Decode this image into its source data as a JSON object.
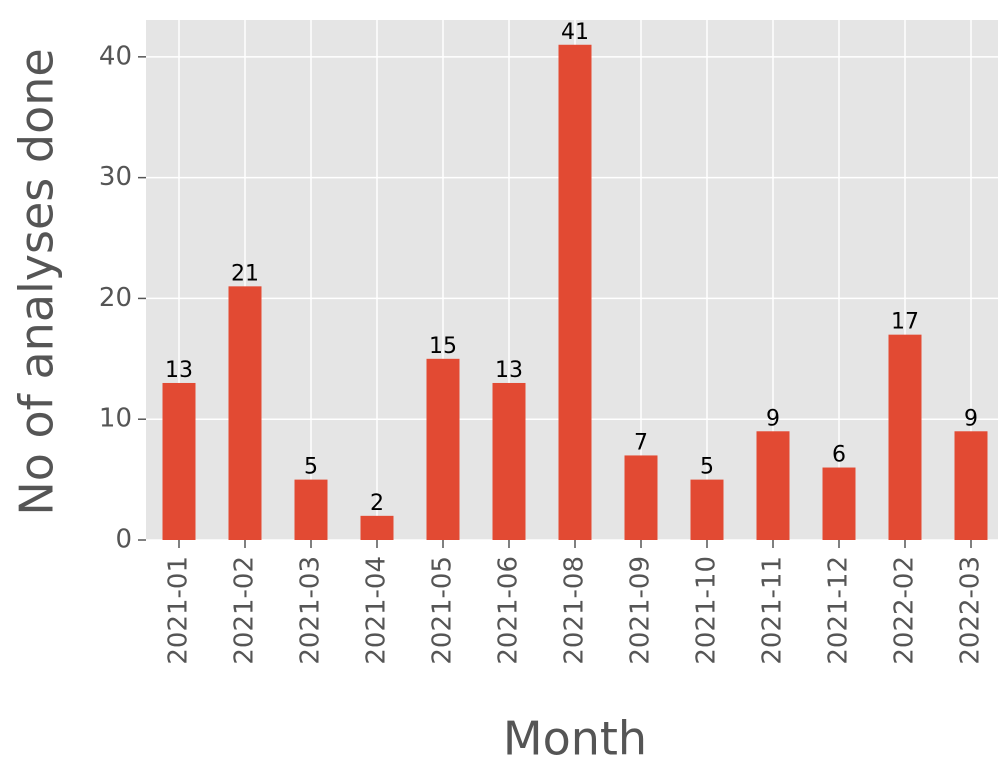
{
  "chart_data": {
    "type": "bar",
    "xlabel": "Month",
    "ylabel": "No of analyses done",
    "categories": [
      "2021-01",
      "2021-02",
      "2021-03",
      "2021-04",
      "2021-05",
      "2021-06",
      "2021-08",
      "2021-09",
      "2021-10",
      "2021-11",
      "2021-12",
      "2022-02",
      "2022-03"
    ],
    "values": [
      13,
      21,
      5,
      2,
      15,
      13,
      41,
      7,
      5,
      9,
      6,
      17,
      9
    ],
    "color": "#e24a33",
    "ylim": [
      0,
      43.05
    ],
    "yticks": [
      0,
      10,
      20,
      30,
      40
    ],
    "grid": true
  }
}
